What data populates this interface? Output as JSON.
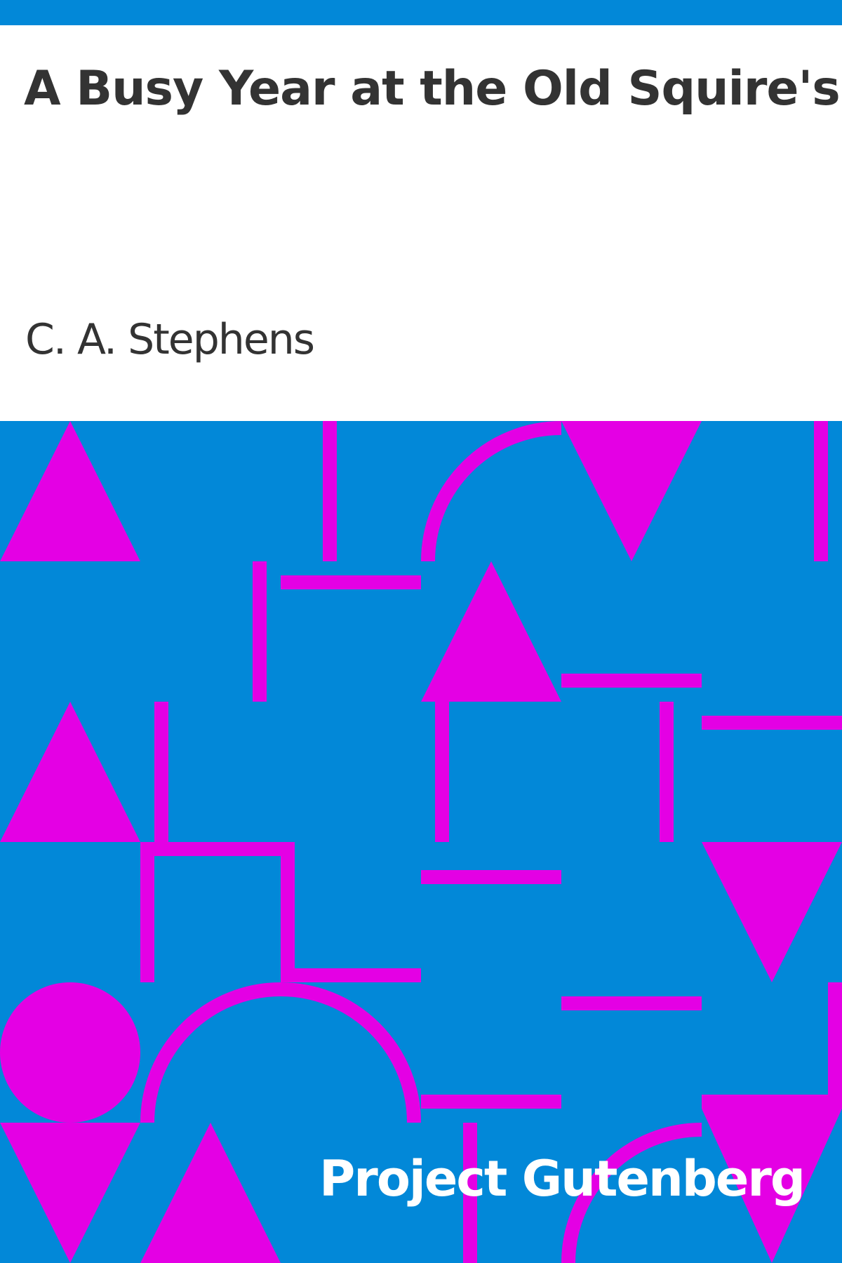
{
  "cover": {
    "title": "A Busy Year at the Old Squire's",
    "author": "C. A. Stephens",
    "brand": "Project Gutenberg"
  },
  "colors": {
    "background_blue": "#0288d8",
    "shape_magenta": "#e400e4",
    "text_dark": "#333333",
    "text_light": "#ffffff",
    "paper_white": "#ffffff"
  }
}
